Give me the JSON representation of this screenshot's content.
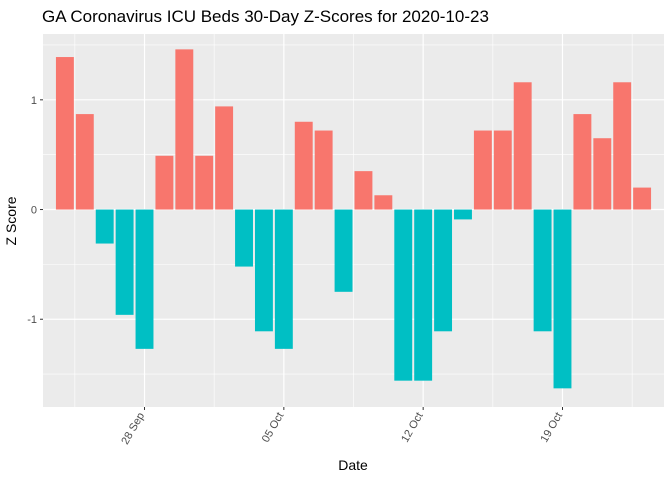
{
  "chart_data": {
    "type": "bar",
    "title": "GA Coronavirus ICU Beds 30-Day Z-Scores for 2020-10-23",
    "xlabel": "Date",
    "ylabel": "Z Score",
    "x_ticks": [
      "28 Sep",
      "05 Oct",
      "12 Oct",
      "19 Oct"
    ],
    "y_ticks": [
      -1,
      0,
      1
    ],
    "ylim": [
      -1.8,
      1.6
    ],
    "grid": true,
    "legend": "none",
    "colors": {
      "positive": "#F8766D",
      "negative": "#00BFC4",
      "panel": "#EBEBEB",
      "grid": "#FFFFFF"
    },
    "x": [
      "2020-09-24",
      "2020-09-25",
      "2020-09-26",
      "2020-09-27",
      "2020-09-28",
      "2020-09-29",
      "2020-09-30",
      "2020-10-01",
      "2020-10-02",
      "2020-10-03",
      "2020-10-04",
      "2020-10-05",
      "2020-10-06",
      "2020-10-07",
      "2020-10-08",
      "2020-10-09",
      "2020-10-10",
      "2020-10-11",
      "2020-10-12",
      "2020-10-13",
      "2020-10-14",
      "2020-10-15",
      "2020-10-16",
      "2020-10-17",
      "2020-10-18",
      "2020-10-19",
      "2020-10-20",
      "2020-10-21",
      "2020-10-22",
      "2020-10-23"
    ],
    "values": [
      1.39,
      0.87,
      -0.31,
      -0.96,
      -1.27,
      0.49,
      1.46,
      0.49,
      0.94,
      -0.52,
      -1.11,
      -1.27,
      0.8,
      0.72,
      -0.75,
      0.35,
      0.13,
      -1.56,
      -1.56,
      -1.11,
      -0.09,
      0.72,
      0.72,
      1.16,
      -1.11,
      -1.63,
      0.87,
      0.65,
      1.16,
      0.2
    ]
  }
}
